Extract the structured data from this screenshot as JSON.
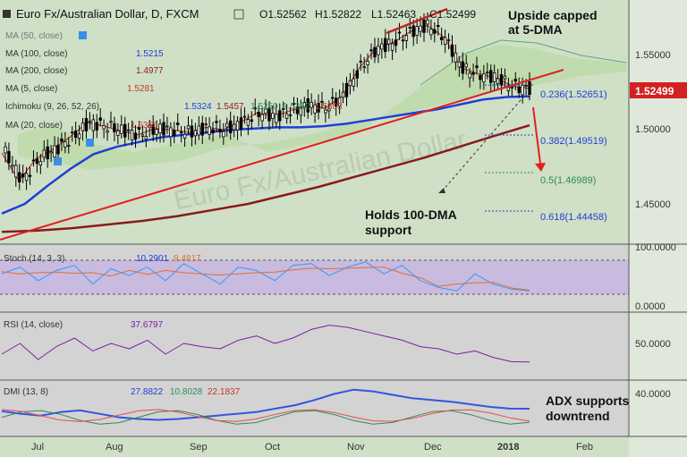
{
  "header": {
    "symbol": "Euro Fx/Australian Dollar, D, FXCM",
    "open": "O1.52562",
    "high": "H1.52822",
    "low": "L1.52463",
    "close": "C1.52499"
  },
  "colors": {
    "background": "#cfe0c6",
    "oscillator_background": "#d3d3d3",
    "stoch_band": "#c7b8e0",
    "candle": "#000000",
    "ma5": "#c0392b",
    "ma100": "#1f3fd6",
    "ma200": "#8b1a1a",
    "trendline": "#e02020",
    "price_badge": "#d42020",
    "stoch_k": "#3399ff",
    "stoch_d": "#e07030",
    "rsi": "#7a1fa2",
    "adx": "#3355dd",
    "di_plus": "#2e8b57",
    "di_minus": "#e05050"
  },
  "indicators": [
    {
      "label": "MA (50, close)",
      "value": ""
    },
    {
      "label": "MA (100, close)",
      "value": "1.5215"
    },
    {
      "label": "MA (200, close)",
      "value": "1.4977"
    },
    {
      "label": "MA (5, close)",
      "value": "1.5281"
    },
    {
      "label": "Ichimoku (9, 26, 52, 26)",
      "values": [
        "1.5324",
        "1.5457",
        "1.5250",
        "1.5352",
        "1.5303"
      ]
    },
    {
      "label": "MA (20, close)",
      "value": "1.5356"
    }
  ],
  "annotations": {
    "upside_capped": [
      "Upside capped",
      "at 5-DMA"
    ],
    "holds_support": [
      "Holds 100-DMA",
      "support"
    ],
    "adx": [
      "ADX supports",
      "downtrend"
    ],
    "watermark": "Euro Fx/Australian Dollar"
  },
  "fib_levels": [
    {
      "label": "0.236(1.52651)",
      "price": 1.52651
    },
    {
      "label": "0.382(1.49519)",
      "price": 1.49519
    },
    {
      "label": "0.5(1.46989)",
      "price": 1.46989
    },
    {
      "label": "0.618(1.44458)",
      "price": 1.44458
    }
  ],
  "price_axis": {
    "ticks": [
      "1.55000",
      "1.50000",
      "1.45000"
    ],
    "current": "1.52499"
  },
  "stoch": {
    "title": "Stoch (14, 3, 3)",
    "k": "10.2901",
    "d": "9.4817",
    "ticks": [
      "100.0000",
      "0.0000"
    ]
  },
  "rsi": {
    "title": "RSI (14, close)",
    "value": "37.6797",
    "ticks": [
      "50.0000"
    ]
  },
  "dmi": {
    "title": "DMI (13, 8)",
    "adx": "27.8822",
    "di_plus": "10.8028",
    "di_minus": "22.1837",
    "ticks": [
      "40.0000"
    ]
  },
  "time_axis": [
    "Jul",
    "Aug",
    "Sep",
    "Oct",
    "Nov",
    "Dec",
    "2018",
    "Feb"
  ],
  "chart_data": {
    "type": "line",
    "title": "Euro Fx/Australian Dollar, D, FXCM",
    "price_range": [
      1.405,
      1.595
    ],
    "x_ticks": [
      "Jul",
      "Aug",
      "Sep",
      "Oct",
      "Nov",
      "Dec",
      "2018",
      "Feb"
    ],
    "series": [
      {
        "name": "MA (5, close)",
        "values": [
          1.475,
          1.452,
          1.47,
          1.478,
          1.488,
          1.5,
          1.497,
          1.493,
          1.49,
          1.495,
          1.494,
          1.492,
          1.496,
          1.494,
          1.5,
          1.508,
          1.505,
          1.51,
          1.514,
          1.512,
          1.522,
          1.545,
          1.561,
          1.566,
          1.575,
          1.58,
          1.57,
          1.545,
          1.54,
          1.537,
          1.53,
          1.528
        ]
      },
      {
        "name": "MA (100, close)",
        "values": [
          1.425,
          1.433,
          1.448,
          1.462,
          1.474,
          1.48,
          1.484,
          1.488,
          1.49,
          1.492,
          1.494,
          1.495,
          1.496,
          1.496,
          1.497,
          1.499,
          1.502,
          1.505,
          1.508,
          1.511,
          1.515,
          1.519,
          1.521,
          1.5215
        ]
      },
      {
        "name": "MA (200, close)",
        "values": [
          1.41,
          1.411,
          1.413,
          1.416,
          1.419,
          1.423,
          1.428,
          1.433,
          1.44,
          1.447,
          1.455,
          1.463,
          1.471,
          1.48,
          1.489,
          1.4977
        ]
      },
      {
        "name": "Stoch %K",
        "values": [
          60,
          80,
          40,
          70,
          85,
          30,
          75,
          55,
          80,
          40,
          90,
          60,
          30,
          80,
          70,
          40,
          85,
          90,
          55,
          80,
          95,
          60,
          85,
          40,
          20,
          10,
          60,
          30,
          15,
          10.29
        ]
      },
      {
        "name": "RSI",
        "values": [
          45,
          55,
          40,
          52,
          60,
          48,
          55,
          50,
          58,
          45,
          55,
          52,
          50,
          58,
          62,
          55,
          60,
          68,
          72,
          70,
          66,
          62,
          58,
          52,
          50,
          45,
          48,
          42,
          38,
          37.68
        ]
      },
      {
        "name": "ADX",
        "values": [
          25,
          22,
          20,
          24,
          26,
          22,
          18,
          16,
          15,
          16,
          18,
          20,
          22,
          24,
          28,
          32,
          38,
          45,
          50,
          48,
          44,
          40,
          38,
          36,
          33,
          30,
          28,
          27.88
        ]
      }
    ]
  }
}
